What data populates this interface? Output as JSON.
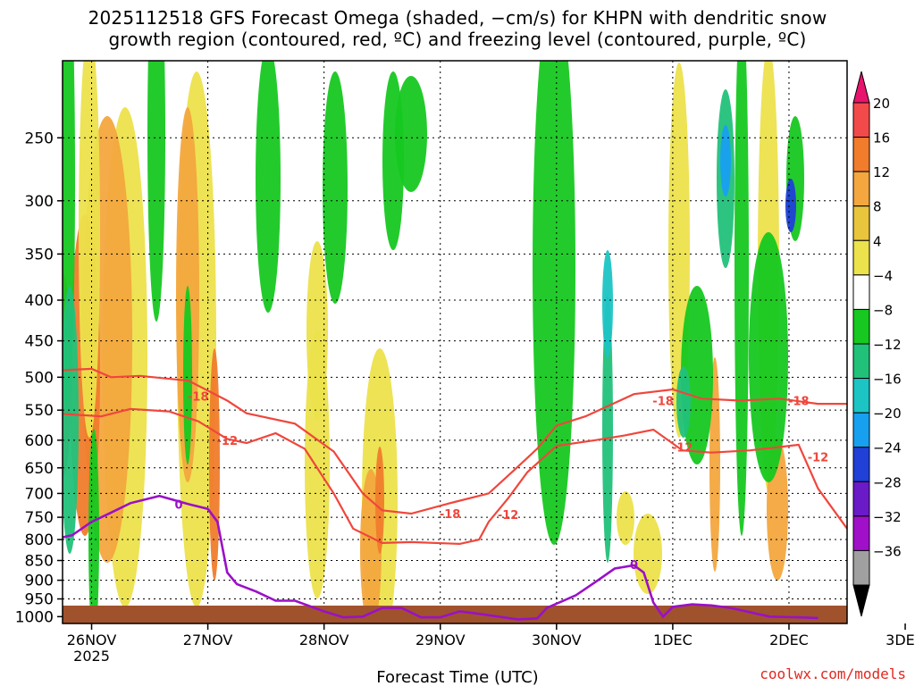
{
  "title": {
    "line1": "2025112518 GFS Forecast Omega (shaded, −cm/s) for KHPN with dendritic snow",
    "line2": "growth region (contoured, red, ºC) and freezing level (contoured, purple, ºC)"
  },
  "credit": "coolwx.com/models",
  "chart_data": {
    "type": "heatmap",
    "title": "2025112518 GFS Forecast Omega (shaded, −cm/s) for KHPN with dendritic snow growth region (contoured, red, ºC) and freezing level (contoured, purple, ºC)",
    "xlabel": "Forecast Time (UTC)",
    "ylabel": "",
    "x_ticks": [
      "26NOV",
      "27NOV",
      "28NOV",
      "29NOV",
      "30NOV",
      "1DEC",
      "2DEC",
      "3DEC"
    ],
    "x_year": "2025",
    "x_range_hours": [
      -6,
      156
    ],
    "y_ticks": [
      250,
      300,
      350,
      400,
      450,
      500,
      550,
      600,
      650,
      700,
      750,
      800,
      850,
      900,
      950,
      1000
    ],
    "y_range_hPa": [
      200,
      1020
    ],
    "grid": true,
    "colorbar": {
      "labels": [
        "20",
        "16",
        "12",
        "8",
        "4",
        "−4",
        "−8",
        "−12",
        "−16",
        "−20",
        "−24",
        "−28",
        "−32",
        "−36"
      ],
      "colors": [
        "#e8136c",
        "#f24a4a",
        "#f07c2c",
        "#f3a73e",
        "#e8c53c",
        "#ece24c",
        "#ffffff",
        "#16c820",
        "#22c17a",
        "#1cc4c4",
        "#18a0f0",
        "#2040d8",
        "#6a1ac6",
        "#a010c8",
        "#a0a0a0"
      ]
    },
    "series": [
      {
        "name": "-18",
        "color": "#f0463c",
        "points": [
          [
            -6,
            490
          ],
          [
            0,
            488
          ],
          [
            4,
            500
          ],
          [
            10,
            498
          ],
          [
            20,
            505
          ],
          [
            28,
            535
          ],
          [
            32,
            555
          ],
          [
            42,
            572
          ],
          [
            50,
            620
          ],
          [
            56,
            700
          ],
          [
            60,
            735
          ],
          [
            66,
            742
          ],
          [
            74,
            720
          ],
          [
            82,
            700
          ],
          [
            88,
            648
          ],
          [
            92,
            615
          ],
          [
            96,
            575
          ],
          [
            102,
            560
          ],
          [
            112,
            525
          ],
          [
            120,
            518
          ],
          [
            126,
            532
          ],
          [
            134,
            535
          ],
          [
            142,
            532
          ],
          [
            150,
            540
          ],
          [
            156,
            540
          ]
        ]
      },
      {
        "name": "-12",
        "color": "#f0463c",
        "points": [
          [
            -6,
            556
          ],
          [
            2,
            560
          ],
          [
            8,
            548
          ],
          [
            16,
            552
          ],
          [
            22,
            568
          ],
          [
            28,
            598
          ],
          [
            32,
            605
          ],
          [
            38,
            588
          ],
          [
            44,
            615
          ],
          [
            50,
            700
          ],
          [
            54,
            775
          ],
          [
            60,
            808
          ],
          [
            66,
            806
          ],
          [
            76,
            810
          ],
          [
            80,
            800
          ],
          [
            82,
            760
          ],
          [
            86,
            710
          ],
          [
            90,
            658
          ],
          [
            96,
            610
          ],
          [
            104,
            600
          ],
          [
            110,
            592
          ],
          [
            116,
            582
          ],
          [
            122,
            618
          ],
          [
            128,
            622
          ],
          [
            136,
            618
          ],
          [
            142,
            612
          ],
          [
            146,
            608
          ],
          [
            150,
            690
          ],
          [
            156,
            775
          ]
        ]
      },
      {
        "name": "0",
        "color": "#9a10c8",
        "points": [
          [
            -6,
            795
          ],
          [
            -4,
            790
          ],
          [
            0,
            760
          ],
          [
            4,
            740
          ],
          [
            8,
            720
          ],
          [
            14,
            705
          ],
          [
            20,
            722
          ],
          [
            24,
            732
          ],
          [
            26,
            760
          ],
          [
            28,
            880
          ],
          [
            30,
            910
          ],
          [
            34,
            930
          ],
          [
            38,
            955
          ],
          [
            42,
            955
          ],
          [
            48,
            985
          ],
          [
            52,
            1002
          ],
          [
            56,
            1000
          ],
          [
            60,
            975
          ],
          [
            64,
            975
          ],
          [
            68,
            1002
          ],
          [
            72,
            1002
          ],
          [
            76,
            985
          ],
          [
            80,
            992
          ],
          [
            84,
            1000
          ],
          [
            88,
            1008
          ],
          [
            92,
            1005
          ],
          [
            94,
            975
          ],
          [
            100,
            940
          ],
          [
            104,
            905
          ],
          [
            108,
            870
          ],
          [
            112,
            862
          ],
          [
            114,
            880
          ],
          [
            116,
            960
          ],
          [
            118,
            1000
          ],
          [
            120,
            972
          ],
          [
            124,
            965
          ],
          [
            128,
            968
          ],
          [
            132,
            975
          ],
          [
            140,
            1000
          ],
          [
            146,
            1002
          ],
          [
            150,
            1004
          ]
        ]
      }
    ],
    "contour_labels": [
      "-18",
      "-12",
      "-18",
      "-12",
      "-18",
      "-12",
      "-18",
      "-12",
      "0",
      "0"
    ]
  }
}
